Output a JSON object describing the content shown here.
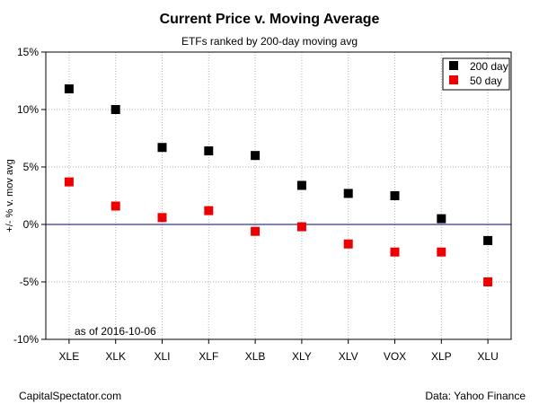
{
  "chart_data": {
    "type": "scatter",
    "title": "Current Price v. Moving Average",
    "subtitle": "ETFs ranked by 200-day moving avg",
    "xlabel": "",
    "ylabel": "+/- % v. mov avg",
    "categories": [
      "XLE",
      "XLK",
      "XLI",
      "XLF",
      "XLB",
      "XLY",
      "XLV",
      "VOX",
      "XLP",
      "XLU"
    ],
    "ylim": [
      -10,
      15
    ],
    "yticks": [
      -10,
      -5,
      0,
      5,
      10,
      15
    ],
    "ytick_labels": [
      "-10%",
      "-5%",
      "0%",
      "5%",
      "10%",
      "15%"
    ],
    "grid": true,
    "legend_position": "top-right",
    "series": [
      {
        "name": "200 day",
        "color": "#000000",
        "values": [
          11.8,
          10.0,
          6.7,
          6.4,
          6.0,
          3.4,
          2.7,
          2.5,
          0.5,
          -1.4
        ]
      },
      {
        "name": "50 day",
        "color": "#ee0000",
        "values": [
          3.7,
          1.6,
          0.6,
          1.2,
          -0.6,
          -0.2,
          -1.7,
          -2.4,
          -2.4,
          -5.0
        ]
      }
    ],
    "zero_line_color": "#000080",
    "annotation": "as of  2016-10-06"
  },
  "footer": {
    "left": "CapitalSpectator.com",
    "right": "Data: Yahoo Finance"
  }
}
